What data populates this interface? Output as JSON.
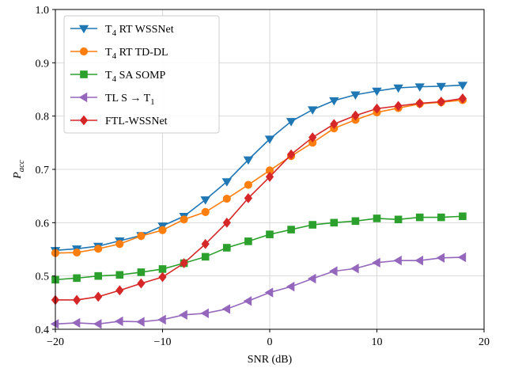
{
  "chart_data": {
    "type": "line",
    "xlabel": "SNR (dB)",
    "ylabel": "P",
    "ylabel_subscript": "acc",
    "xlim": [
      -20,
      20
    ],
    "ylim": [
      0.4,
      1.0
    ],
    "xticks": [
      -20,
      -10,
      0,
      10,
      20
    ],
    "yticks": [
      0.4,
      0.5,
      0.6,
      0.7,
      0.8,
      0.9,
      1.0
    ],
    "xtick_labels": [
      "−20",
      "−10",
      "0",
      "10",
      "20"
    ],
    "ytick_labels": [
      "0.4",
      "0.5",
      "0.6",
      "0.7",
      "0.8",
      "0.9",
      "1.0"
    ],
    "grid": true,
    "legend_position": "top-left",
    "x": [
      -20,
      -18,
      -16,
      -14,
      -12,
      -10,
      -8,
      -6,
      -4,
      -2,
      0,
      2,
      4,
      6,
      8,
      10,
      12,
      14,
      16,
      18
    ],
    "series": [
      {
        "name_parts": [
          "T",
          "4",
          " RT WSSNet"
        ],
        "color": "#1f77b4",
        "marker": "triangle-down",
        "values": [
          0.548,
          0.551,
          0.556,
          0.566,
          0.576,
          0.594,
          0.612,
          0.643,
          0.677,
          0.718,
          0.757,
          0.79,
          0.812,
          0.829,
          0.84,
          0.847,
          0.853,
          0.855,
          0.856,
          0.858
        ]
      },
      {
        "name_parts": [
          "T",
          "4",
          " RT TD-DL"
        ],
        "color": "#ff7f0e",
        "marker": "circle",
        "values": [
          0.543,
          0.544,
          0.551,
          0.56,
          0.575,
          0.586,
          0.606,
          0.62,
          0.645,
          0.671,
          0.698,
          0.725,
          0.75,
          0.777,
          0.793,
          0.807,
          0.815,
          0.823,
          0.826,
          0.83
        ]
      },
      {
        "name_parts": [
          "T",
          "4",
          " SA SOMP"
        ],
        "color": "#2ca02c",
        "marker": "square",
        "values": [
          0.493,
          0.496,
          0.5,
          0.502,
          0.507,
          0.513,
          0.524,
          0.536,
          0.553,
          0.565,
          0.578,
          0.587,
          0.596,
          0.6,
          0.603,
          0.608,
          0.606,
          0.61,
          0.61,
          0.612
        ]
      },
      {
        "name_parts": [
          "TL S → T",
          "1",
          ""
        ],
        "color": "#9467bd",
        "marker": "triangle-left",
        "values": [
          0.41,
          0.412,
          0.41,
          0.415,
          0.414,
          0.418,
          0.427,
          0.43,
          0.438,
          0.453,
          0.469,
          0.48,
          0.495,
          0.509,
          0.514,
          0.525,
          0.529,
          0.529,
          0.534,
          0.535
        ]
      },
      {
        "name_parts": [
          "FTL-WSSNet",
          "",
          ""
        ],
        "color": "#d62728",
        "marker": "diamond",
        "values": [
          0.455,
          0.455,
          0.461,
          0.473,
          0.486,
          0.498,
          0.524,
          0.56,
          0.6,
          0.646,
          0.686,
          0.728,
          0.76,
          0.785,
          0.801,
          0.814,
          0.819,
          0.824,
          0.827,
          0.833
        ]
      }
    ]
  }
}
